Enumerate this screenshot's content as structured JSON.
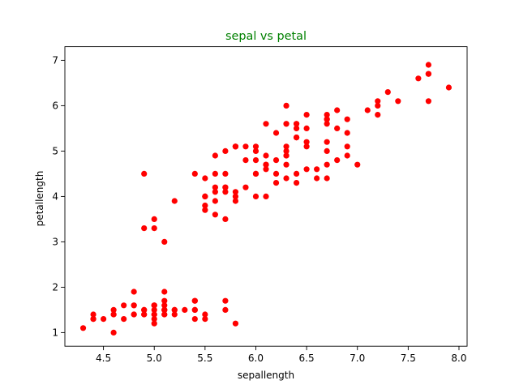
{
  "chart_data": {
    "type": "scatter",
    "title": "sepal vs petal",
    "title_color": "#008000",
    "xlabel": "sepallength",
    "ylabel": "petallength",
    "xlim": [
      4.12,
      8.08
    ],
    "ylim": [
      0.7,
      7.3
    ],
    "x_ticks": [
      4.5,
      5.0,
      5.5,
      6.0,
      6.5,
      7.0,
      7.5,
      8.0
    ],
    "x_tick_labels": [
      "4.5",
      "5.0",
      "5.5",
      "6.0",
      "6.5",
      "7.0",
      "7.5",
      "8.0"
    ],
    "y_ticks": [
      1,
      2,
      3,
      4,
      5,
      6,
      7
    ],
    "y_tick_labels": [
      "1",
      "2",
      "3",
      "4",
      "5",
      "6",
      "7"
    ],
    "grid": false,
    "marker_color": "#ff0000",
    "points": [
      [
        5.1,
        1.4
      ],
      [
        4.9,
        1.4
      ],
      [
        4.7,
        1.3
      ],
      [
        4.6,
        1.5
      ],
      [
        5.0,
        1.4
      ],
      [
        5.4,
        1.7
      ],
      [
        4.6,
        1.4
      ],
      [
        5.0,
        1.5
      ],
      [
        4.4,
        1.4
      ],
      [
        4.9,
        1.5
      ],
      [
        5.4,
        1.5
      ],
      [
        4.8,
        1.6
      ],
      [
        4.8,
        1.4
      ],
      [
        4.3,
        1.1
      ],
      [
        5.8,
        1.2
      ],
      [
        5.7,
        1.5
      ],
      [
        5.4,
        1.3
      ],
      [
        5.1,
        1.4
      ],
      [
        5.7,
        1.7
      ],
      [
        5.1,
        1.5
      ],
      [
        5.4,
        1.7
      ],
      [
        5.1,
        1.5
      ],
      [
        4.6,
        1.0
      ],
      [
        5.1,
        1.7
      ],
      [
        4.8,
        1.9
      ],
      [
        5.0,
        1.6
      ],
      [
        5.0,
        1.6
      ],
      [
        5.2,
        1.5
      ],
      [
        5.2,
        1.4
      ],
      [
        4.7,
        1.6
      ],
      [
        4.8,
        1.6
      ],
      [
        5.4,
        1.5
      ],
      [
        5.2,
        1.5
      ],
      [
        5.5,
        1.4
      ],
      [
        4.9,
        1.5
      ],
      [
        5.0,
        1.2
      ],
      [
        5.5,
        1.3
      ],
      [
        4.9,
        1.4
      ],
      [
        4.4,
        1.3
      ],
      [
        5.1,
        1.5
      ],
      [
        5.0,
        1.3
      ],
      [
        4.5,
        1.3
      ],
      [
        4.4,
        1.3
      ],
      [
        5.0,
        1.6
      ],
      [
        5.1,
        1.9
      ],
      [
        4.8,
        1.4
      ],
      [
        5.1,
        1.6
      ],
      [
        4.6,
        1.4
      ],
      [
        5.3,
        1.5
      ],
      [
        5.0,
        1.4
      ],
      [
        7.0,
        4.7
      ],
      [
        6.4,
        4.5
      ],
      [
        6.9,
        4.9
      ],
      [
        5.5,
        4.0
      ],
      [
        6.5,
        4.6
      ],
      [
        5.7,
        4.5
      ],
      [
        6.3,
        4.7
      ],
      [
        4.9,
        3.3
      ],
      [
        6.6,
        4.6
      ],
      [
        5.2,
        3.9
      ],
      [
        5.0,
        3.5
      ],
      [
        5.9,
        4.2
      ],
      [
        6.0,
        4.0
      ],
      [
        6.1,
        4.7
      ],
      [
        5.6,
        3.6
      ],
      [
        6.7,
        4.4
      ],
      [
        5.6,
        4.5
      ],
      [
        5.8,
        4.1
      ],
      [
        6.2,
        4.5
      ],
      [
        5.6,
        3.9
      ],
      [
        5.9,
        4.8
      ],
      [
        6.1,
        4.0
      ],
      [
        6.3,
        4.9
      ],
      [
        6.1,
        4.7
      ],
      [
        6.4,
        4.3
      ],
      [
        6.6,
        4.4
      ],
      [
        6.8,
        4.8
      ],
      [
        6.7,
        5.0
      ],
      [
        6.0,
        4.5
      ],
      [
        5.7,
        3.5
      ],
      [
        5.5,
        3.8
      ],
      [
        5.5,
        3.7
      ],
      [
        5.8,
        3.9
      ],
      [
        6.0,
        5.1
      ],
      [
        5.4,
        4.5
      ],
      [
        6.0,
        4.5
      ],
      [
        6.7,
        4.7
      ],
      [
        6.3,
        4.4
      ],
      [
        5.6,
        4.1
      ],
      [
        5.5,
        4.0
      ],
      [
        5.5,
        4.4
      ],
      [
        6.1,
        4.6
      ],
      [
        5.8,
        4.0
      ],
      [
        5.0,
        3.3
      ],
      [
        5.6,
        4.2
      ],
      [
        5.7,
        4.2
      ],
      [
        5.7,
        4.2
      ],
      [
        6.2,
        4.3
      ],
      [
        5.1,
        3.0
      ],
      [
        5.7,
        4.1
      ],
      [
        6.3,
        6.0
      ],
      [
        5.8,
        5.1
      ],
      [
        7.1,
        5.9
      ],
      [
        6.3,
        5.6
      ],
      [
        6.5,
        5.8
      ],
      [
        7.6,
        6.6
      ],
      [
        4.9,
        4.5
      ],
      [
        7.3,
        6.3
      ],
      [
        6.7,
        5.8
      ],
      [
        7.2,
        6.1
      ],
      [
        6.5,
        5.1
      ],
      [
        6.4,
        5.3
      ],
      [
        6.8,
        5.5
      ],
      [
        5.7,
        5.0
      ],
      [
        5.8,
        5.1
      ],
      [
        6.4,
        5.3
      ],
      [
        6.5,
        5.5
      ],
      [
        7.7,
        6.7
      ],
      [
        7.7,
        6.9
      ],
      [
        6.0,
        5.0
      ],
      [
        6.9,
        5.7
      ],
      [
        5.6,
        4.9
      ],
      [
        7.7,
        6.7
      ],
      [
        6.3,
        4.9
      ],
      [
        6.7,
        5.7
      ],
      [
        7.2,
        6.0
      ],
      [
        6.2,
        4.8
      ],
      [
        6.1,
        4.9
      ],
      [
        6.4,
        5.6
      ],
      [
        7.2,
        5.8
      ],
      [
        7.4,
        6.1
      ],
      [
        7.9,
        6.4
      ],
      [
        6.4,
        5.6
      ],
      [
        6.3,
        5.1
      ],
      [
        6.1,
        5.6
      ],
      [
        7.7,
        6.1
      ],
      [
        6.3,
        5.6
      ],
      [
        6.4,
        5.5
      ],
      [
        6.0,
        4.8
      ],
      [
        6.9,
        5.4
      ],
      [
        6.7,
        5.6
      ],
      [
        6.9,
        5.1
      ],
      [
        5.8,
        5.1
      ],
      [
        6.8,
        5.9
      ],
      [
        6.7,
        5.7
      ],
      [
        6.7,
        5.2
      ],
      [
        6.3,
        5.0
      ],
      [
        6.5,
        5.2
      ],
      [
        6.2,
        5.4
      ],
      [
        5.9,
        5.1
      ]
    ]
  }
}
